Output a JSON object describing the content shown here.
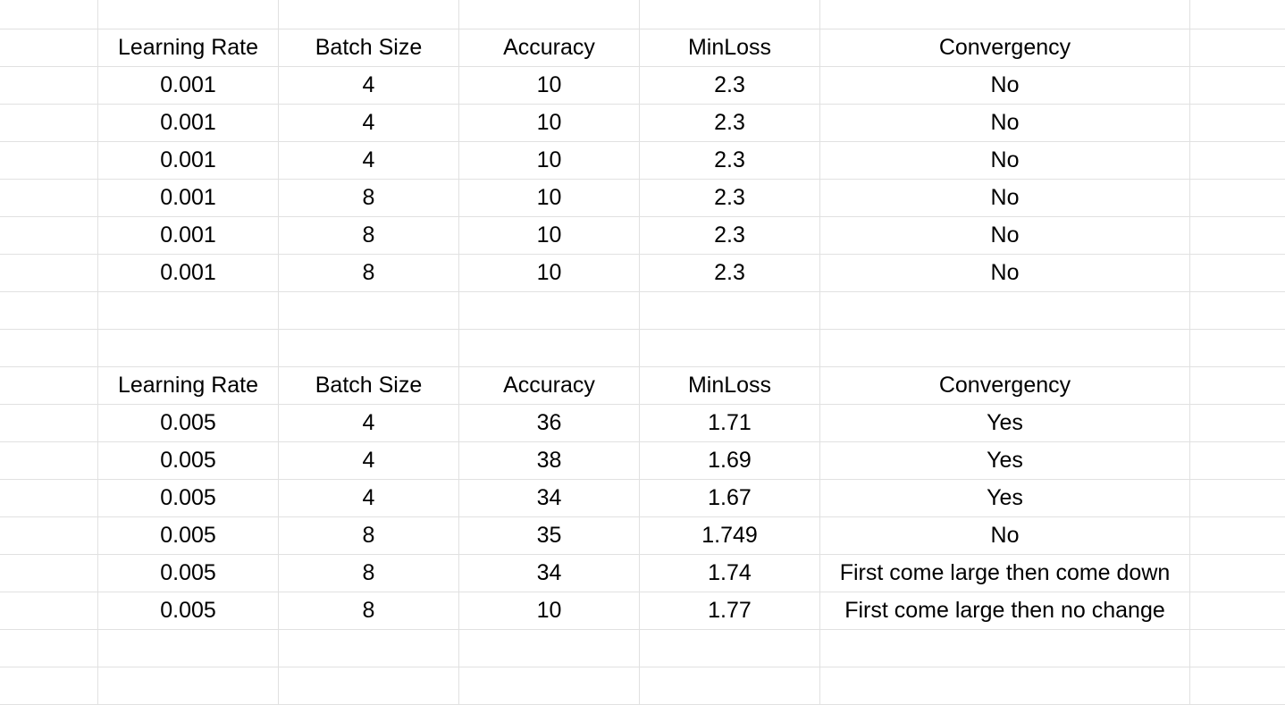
{
  "tables": [
    {
      "headers": [
        "Learning Rate",
        "Batch Size",
        "Accuracy",
        "MinLoss",
        "Convergency"
      ],
      "rows": [
        [
          "0.001",
          "4",
          "10",
          "2.3",
          "No"
        ],
        [
          "0.001",
          "4",
          "10",
          "2.3",
          "No"
        ],
        [
          "0.001",
          "4",
          "10",
          "2.3",
          "No"
        ],
        [
          "0.001",
          "8",
          "10",
          "2.3",
          "No"
        ],
        [
          "0.001",
          "8",
          "10",
          "2.3",
          "No"
        ],
        [
          "0.001",
          "8",
          "10",
          "2.3",
          "No"
        ]
      ]
    },
    {
      "headers": [
        "Learning Rate",
        "Batch Size",
        "Accuracy",
        "MinLoss",
        "Convergency"
      ],
      "rows": [
        [
          "0.005",
          "4",
          "36",
          "1.71",
          "Yes"
        ],
        [
          "0.005",
          "4",
          "38",
          "1.69",
          "Yes"
        ],
        [
          "0.005",
          "4",
          "34",
          "1.67",
          "Yes"
        ],
        [
          "0.005",
          "8",
          "35",
          "1.749",
          "No"
        ],
        [
          "0.005",
          "8",
          "34",
          "1.74",
          "First come large then come down"
        ],
        [
          "0.005",
          "8",
          "10",
          "1.77",
          "First come large then no change"
        ]
      ]
    }
  ]
}
